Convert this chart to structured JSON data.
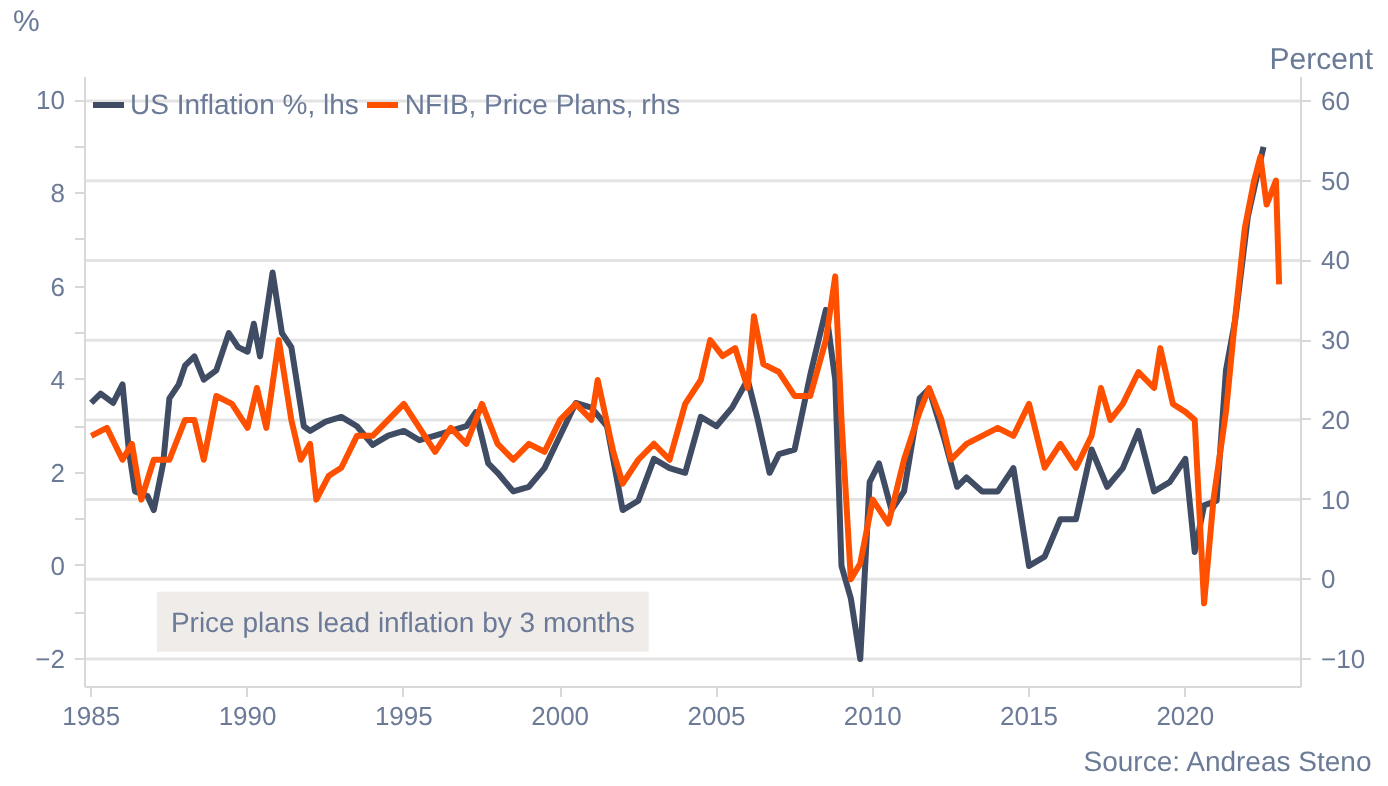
{
  "chart_data": {
    "type": "line",
    "ylabel": "%",
    "y2label": "Percent",
    "xlim": [
      1984.8,
      2023.7
    ],
    "xticks": [
      1985,
      1990,
      1995,
      2000,
      2005,
      2010,
      2015,
      2020
    ],
    "ylim": [
      -2.6,
      10.5
    ],
    "yticks": [
      -2,
      {
        "value": -1,
        "label": null
      },
      0,
      {
        "value": 1,
        "label": null
      },
      2,
      {
        "value": 3,
        "label": null
      },
      4,
      {
        "value": 5,
        "label": null
      },
      6,
      {
        "value": 7,
        "label": null
      },
      8,
      {
        "value": 9,
        "label": null
      },
      10
    ],
    "y2lim": [
      -13.5,
      63
    ],
    "y2ticks": [
      -10,
      0,
      10,
      20,
      30,
      40,
      50,
      60
    ],
    "grid": "y2",
    "legend": "top left",
    "line_style": "solid",
    "marker": "none",
    "annotations": [
      "Price plans lead inflation by 3 months",
      "Source: Andreas Steno"
    ],
    "series": [
      {
        "name": "US Inflation %, lhs",
        "color": "#3f4c63",
        "axis": "y",
        "x": [
          1985.0,
          1985.3,
          1985.7,
          1986.0,
          1986.2,
          1986.4,
          1986.8,
          1987.0,
          1987.3,
          1987.5,
          1987.8,
          1988.0,
          1988.3,
          1988.6,
          1989.0,
          1989.4,
          1989.7,
          1990.0,
          1990.2,
          1990.4,
          1990.8,
          1991.1,
          1991.4,
          1991.8,
          1992.0,
          1992.5,
          1993.0,
          1993.5,
          1994.0,
          1994.5,
          1995.0,
          1995.5,
          1996.0,
          1996.5,
          1997.0,
          1997.3,
          1997.7,
          1998.0,
          1998.5,
          1999.0,
          1999.5,
          2000.0,
          2000.5,
          2001.0,
          2001.5,
          2002.0,
          2002.5,
          2003.0,
          2003.5,
          2004.0,
          2004.5,
          2005.0,
          2005.5,
          2006.0,
          2006.3,
          2006.7,
          2007.0,
          2007.5,
          2008.0,
          2008.5,
          2008.8,
          2009.0,
          2009.3,
          2009.6,
          2009.9,
          2010.2,
          2010.6,
          2011.0,
          2011.5,
          2011.8,
          2012.3,
          2012.7,
          2013.0,
          2013.5,
          2014.0,
          2014.5,
          2015.0,
          2015.5,
          2016.0,
          2016.5,
          2017.0,
          2017.5,
          2018.0,
          2018.5,
          2019.0,
          2019.5,
          2020.0,
          2020.3,
          2020.6,
          2021.0,
          2021.3,
          2021.6,
          2022.0,
          2022.5
        ],
        "values": [
          3.5,
          3.7,
          3.5,
          3.9,
          2.5,
          1.6,
          1.5,
          1.2,
          2.2,
          3.6,
          3.9,
          4.3,
          4.5,
          4.0,
          4.2,
          5.0,
          4.7,
          4.6,
          5.2,
          4.5,
          6.3,
          5.0,
          4.7,
          3.0,
          2.9,
          3.1,
          3.2,
          3.0,
          2.6,
          2.8,
          2.9,
          2.7,
          2.8,
          2.9,
          3.0,
          3.3,
          2.2,
          2.0,
          1.6,
          1.7,
          2.1,
          2.8,
          3.5,
          3.4,
          3.0,
          1.2,
          1.4,
          2.3,
          2.1,
          2.0,
          3.2,
          3.0,
          3.4,
          4.0,
          3.2,
          2.0,
          2.4,
          2.5,
          4.1,
          5.5,
          4.0,
          0.0,
          -0.7,
          -2.0,
          1.8,
          2.2,
          1.2,
          1.6,
          3.6,
          3.8,
          2.7,
          1.7,
          1.9,
          1.6,
          1.6,
          2.1,
          0.0,
          0.2,
          1.0,
          1.0,
          2.5,
          1.7,
          2.1,
          2.9,
          1.6,
          1.8,
          2.3,
          0.3,
          1.3,
          1.4,
          4.2,
          5.3,
          7.5,
          9.0
        ]
      },
      {
        "name": "NFIB, Price Plans, rhs",
        "color": "#ff5000",
        "axis": "y2",
        "x": [
          1985.0,
          1985.5,
          1986.0,
          1986.3,
          1986.6,
          1987.0,
          1987.5,
          1988.0,
          1988.3,
          1988.6,
          1989.0,
          1989.5,
          1990.0,
          1990.3,
          1990.6,
          1991.0,
          1991.4,
          1991.7,
          1992.0,
          1992.2,
          1992.6,
          1993.0,
          1993.5,
          1994.0,
          1994.5,
          1995.0,
          1995.5,
          1996.0,
          1996.5,
          1997.0,
          1997.5,
          1998.0,
          1998.5,
          1999.0,
          1999.5,
          2000.0,
          2000.5,
          2001.0,
          2001.2,
          2001.7,
          2002.0,
          2002.5,
          2003.0,
          2003.5,
          2004.0,
          2004.5,
          2004.8,
          2005.2,
          2005.6,
          2006.0,
          2006.2,
          2006.5,
          2007.0,
          2007.5,
          2008.0,
          2008.5,
          2008.8,
          2009.0,
          2009.3,
          2009.6,
          2010.0,
          2010.5,
          2011.0,
          2011.5,
          2011.8,
          2012.2,
          2012.5,
          2013.0,
          2013.5,
          2014.0,
          2014.5,
          2015.0,
          2015.5,
          2016.0,
          2016.5,
          2017.0,
          2017.3,
          2017.6,
          2018.0,
          2018.5,
          2019.0,
          2019.2,
          2019.6,
          2020.0,
          2020.3,
          2020.6,
          2020.9,
          2021.3,
          2021.6,
          2021.9,
          2022.2,
          2022.4,
          2022.6,
          2022.9,
          2023.0
        ],
        "values": [
          18,
          19,
          15,
          17,
          10,
          15,
          15,
          20,
          20,
          15,
          23,
          22,
          19,
          24,
          19,
          30,
          20,
          15,
          17,
          10,
          13,
          14,
          18,
          18,
          20,
          22,
          19,
          16,
          19,
          17,
          22,
          17,
          15,
          17,
          16,
          20,
          22,
          20,
          25,
          16,
          12,
          15,
          17,
          15,
          22,
          25,
          30,
          28,
          29,
          24,
          33,
          27,
          26,
          23,
          23,
          30,
          38,
          20,
          0,
          2,
          10,
          7,
          15,
          21,
          24,
          20,
          15,
          17,
          18,
          19,
          18,
          22,
          14,
          17,
          14,
          18,
          24,
          20,
          22,
          26,
          24,
          29,
          22,
          21,
          20,
          -3,
          10,
          21,
          33,
          44,
          50,
          53,
          47,
          50,
          37
        ]
      }
    ]
  }
}
